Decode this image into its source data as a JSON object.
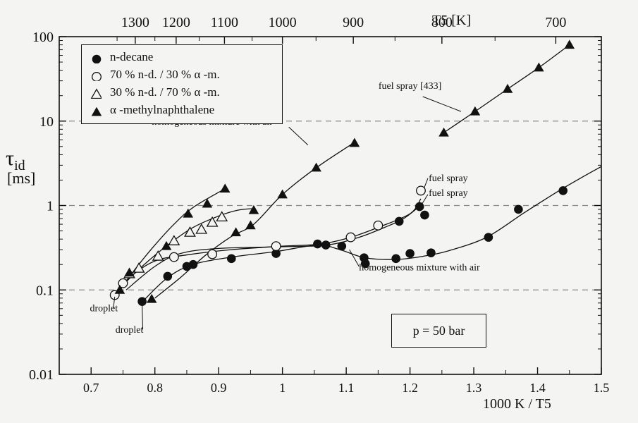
{
  "chart_data": {
    "type": "scatter",
    "y_axis_label": "τ",
    "y_axis_label_sub": "id",
    "y_axis_unit": "[ms]",
    "x_axis_label": "1000 K / T5",
    "top_axis_label": "T5 [K]",
    "x_scale": "linear",
    "y_scale": "log",
    "xlim": [
      0.65,
      1.5
    ],
    "ylim": [
      0.01,
      100
    ],
    "x_ticks": [
      "0.7",
      "0.8",
      "0.9",
      "1",
      "1.1",
      "1.2",
      "1.3",
      "1.4",
      "1.5"
    ],
    "x_tick_values": [
      0.7,
      0.8,
      0.9,
      1.0,
      1.1,
      1.2,
      1.3,
      1.4,
      1.5
    ],
    "y_ticks": [
      "0.01",
      "0.1",
      "1",
      "10",
      "100"
    ],
    "y_tick_values": [
      0.01,
      0.1,
      1,
      10,
      100
    ],
    "top_ticks": [
      "1300",
      "1200",
      "1100",
      "1000",
      "900",
      "800",
      "700"
    ],
    "top_tick_values": [
      1300,
      1200,
      1100,
      1000,
      900,
      800,
      700
    ],
    "grid": "dashed horizontal at 0.1, 1, 10",
    "legend": [
      {
        "name": "n-decane",
        "marker": "filled-circle"
      },
      {
        "name": "70 % n-d. / 30 % α -m.",
        "marker": "open-circle"
      },
      {
        "name": "30 % n-d. / 70 % α -m.",
        "marker": "open-triangle"
      },
      {
        "name": "α -methylnaphthalene",
        "marker": "filled-triangle"
      }
    ],
    "legend_position": "top-left",
    "series": [
      {
        "name": "n-decane",
        "marker": "filled-circle",
        "points": [
          [
            0.78,
            0.073
          ],
          [
            0.82,
            0.145
          ],
          [
            0.85,
            0.19
          ],
          [
            0.86,
            0.2
          ],
          [
            0.92,
            0.235
          ],
          [
            0.99,
            0.27
          ],
          [
            1.055,
            0.35
          ],
          [
            1.068,
            0.34
          ],
          [
            1.093,
            0.33
          ],
          [
            1.128,
            0.24
          ],
          [
            1.13,
            0.205
          ],
          [
            1.178,
            0.235
          ],
          [
            1.2,
            0.27
          ],
          [
            1.233,
            0.275
          ],
          [
            1.323,
            0.42
          ],
          [
            1.37,
            0.9
          ],
          [
            1.44,
            1.5
          ],
          [
            1.183,
            0.65
          ],
          [
            1.215,
            0.97
          ],
          [
            1.223,
            0.77
          ]
        ]
      },
      {
        "name": "70 % n-d. / 30 % α -m.",
        "marker": "open-circle",
        "points": [
          [
            0.737,
            0.087
          ],
          [
            0.75,
            0.12
          ],
          [
            0.83,
            0.245
          ],
          [
            0.89,
            0.265
          ],
          [
            0.99,
            0.33
          ],
          [
            1.107,
            0.42
          ],
          [
            1.15,
            0.58
          ],
          [
            1.217,
            1.5
          ]
        ]
      },
      {
        "name": "30 % n-d. / 70 % α -m.",
        "marker": "open-triangle",
        "points": [
          [
            0.76,
            0.155
          ],
          [
            0.775,
            0.18
          ],
          [
            0.805,
            0.25
          ],
          [
            0.83,
            0.38
          ],
          [
            0.855,
            0.48
          ],
          [
            0.873,
            0.52
          ],
          [
            0.89,
            0.63
          ],
          [
            0.905,
            0.73
          ]
        ]
      },
      {
        "name": "α -methylnaphthalene",
        "marker": "filled-triangle",
        "points": [
          [
            0.745,
            0.1
          ],
          [
            0.76,
            0.16
          ],
          [
            0.795,
            0.078
          ],
          [
            0.818,
            0.33
          ],
          [
            0.852,
            0.8
          ],
          [
            0.882,
            1.05
          ],
          [
            0.91,
            1.58
          ],
          [
            0.927,
            0.48
          ],
          [
            0.95,
            0.58
          ],
          [
            0.955,
            0.88
          ],
          [
            1.0,
            1.35
          ],
          [
            1.053,
            2.8
          ],
          [
            1.113,
            5.5
          ],
          [
            1.253,
            7.3
          ],
          [
            1.302,
            13
          ],
          [
            1.353,
            24
          ],
          [
            1.402,
            43
          ],
          [
            1.45,
            80
          ]
        ]
      }
    ],
    "fitted_curves": [
      {
        "series": "n-decane",
        "points": [
          [
            0.78,
            0.072
          ],
          [
            0.82,
            0.14
          ],
          [
            0.86,
            0.2
          ],
          [
            0.92,
            0.245
          ],
          [
            0.99,
            0.285
          ],
          [
            1.055,
            0.34
          ],
          [
            1.09,
            0.3
          ],
          [
            1.13,
            0.24
          ],
          [
            1.18,
            0.23
          ],
          [
            1.22,
            0.25
          ],
          [
            1.26,
            0.29
          ],
          [
            1.32,
            0.42
          ],
          [
            1.38,
            0.83
          ],
          [
            1.44,
            1.6
          ],
          [
            1.5,
            2.9
          ]
        ]
      },
      {
        "series": "n-decane",
        "points": [
          [
            0.755,
            0.1
          ],
          [
            0.8,
            0.19
          ],
          [
            0.84,
            0.27
          ],
          [
            0.9,
            0.31
          ],
          [
            1.0,
            0.325
          ],
          [
            1.07,
            0.34
          ],
          [
            1.12,
            0.42
          ],
          [
            1.16,
            0.55
          ],
          [
            1.19,
            0.7
          ],
          [
            1.215,
            0.98
          ]
        ]
      },
      {
        "series": "70 % n-d. / 30 % α -m.",
        "points": [
          [
            0.737,
            0.087
          ],
          [
            0.76,
            0.14
          ],
          [
            0.8,
            0.22
          ],
          [
            0.85,
            0.26
          ],
          [
            0.92,
            0.3
          ],
          [
            1.0,
            0.33
          ],
          [
            1.06,
            0.35
          ],
          [
            1.107,
            0.42
          ],
          [
            1.15,
            0.55
          ],
          [
            1.2,
            0.8
          ],
          [
            1.217,
            1.2
          ]
        ]
      },
      {
        "series": "30 % n-d. / 70 % α -m.",
        "points": [
          [
            0.745,
            0.105
          ],
          [
            0.78,
            0.19
          ],
          [
            0.82,
            0.34
          ],
          [
            0.86,
            0.55
          ],
          [
            0.9,
            0.75
          ],
          [
            0.93,
            0.88
          ],
          [
            0.955,
            0.92
          ]
        ]
      },
      {
        "series": "α -methylnaphthalene",
        "points": [
          [
            0.745,
            0.1
          ],
          [
            0.77,
            0.18
          ],
          [
            0.8,
            0.34
          ],
          [
            0.83,
            0.6
          ],
          [
            0.86,
            0.95
          ],
          [
            0.91,
            1.58
          ]
        ]
      },
      {
        "series": "α -methylnaphthalene",
        "points": [
          [
            0.8,
            0.08
          ],
          [
            0.84,
            0.14
          ],
          [
            0.88,
            0.26
          ],
          [
            0.92,
            0.43
          ],
          [
            0.955,
            0.6
          ],
          [
            1.0,
            1.35
          ],
          [
            1.053,
            2.8
          ],
          [
            1.113,
            5.6
          ]
        ]
      },
      {
        "series": "α -methylnaphthalene",
        "points": [
          [
            1.253,
            7.3
          ],
          [
            1.302,
            13
          ],
          [
            1.353,
            24
          ],
          [
            1.402,
            43
          ],
          [
            1.45,
            80
          ]
        ]
      }
    ],
    "annotations": [
      {
        "text": "homogeneous mixture with air",
        "x": 1.12,
        "y": 0.17
      },
      {
        "text": "homogeneous mixture with air",
        "x": 0.89,
        "y": 9
      },
      {
        "text": "fuel spray [433]",
        "x": 1.2,
        "y": 24
      },
      {
        "text": "fuel spray",
        "x": 1.26,
        "y": 1.95
      },
      {
        "text": "fuel spray",
        "x": 1.26,
        "y": 1.3
      },
      {
        "text": "droplet",
        "x": 0.72,
        "y": 0.056
      },
      {
        "text": "droplet",
        "x": 0.76,
        "y": 0.031
      },
      {
        "text": "p = 50 bar",
        "x": 1.2,
        "y": 0.0365
      }
    ],
    "colors": {
      "ink": "#111111",
      "background": "#f4f4f2",
      "grid": "#888888"
    }
  }
}
